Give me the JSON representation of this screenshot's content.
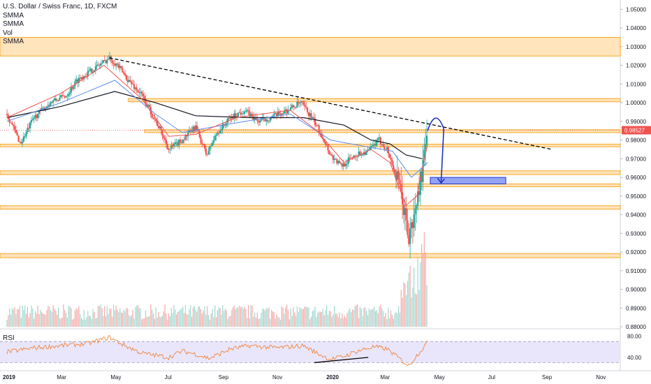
{
  "legend": {
    "symbol": "U.S. Dollar / Swiss Franc, 1D, FXCM",
    "indicators": [
      "SMMA",
      "SMMA",
      "Vol",
      "SMMA"
    ]
  },
  "rsi_label": "RSI",
  "colors": {
    "bull": "#26a69a",
    "bear": "#ef5350",
    "zone_fill": "#ffd9a0",
    "zone_edge": "#f5a623",
    "trendline": "#000000",
    "arrow": "#1f32c8",
    "target_box": "#6f86f0",
    "price_badge": "#ef5350",
    "rsi_line": "#f0833a",
    "rsi_band": "#e9e6fb",
    "smma_fast": "#ef5350",
    "smma_mid": "#5b8def",
    "smma_slow": "#131722",
    "volume": "#c4c4c4"
  },
  "chart_data": {
    "type": "candlestick",
    "title": "U.S. Dollar / Swiss Franc, 1D, FXCM",
    "price_axis": {
      "ylim": [
        0.88,
        1.055
      ],
      "ticks": [
        1.05,
        1.04,
        1.03,
        1.02,
        1.01,
        1.0,
        0.99,
        0.98,
        0.97,
        0.96,
        0.95,
        0.94,
        0.93,
        0.92,
        0.91,
        0.9,
        0.89,
        0.88
      ],
      "tick_labels": [
        "1.05000",
        "1.04000",
        "1.03000",
        "1.02000",
        "1.01000",
        "1.00000",
        "0.99000",
        "0.98000",
        "0.97000",
        "0.96000",
        "0.95000",
        "0.94000",
        "0.93000",
        "0.92000",
        "0.91000",
        "0.90000",
        "0.89000",
        "0.88000"
      ]
    },
    "current_price": 0.98527,
    "current_price_label": "0.98527",
    "x_labels": [
      "2019",
      "Mar",
      "May",
      "Jul",
      "Sep",
      "Nov",
      "2020",
      "Mar",
      "May",
      "Jul",
      "Sep",
      "Nov"
    ],
    "x_label_months": [
      0,
      2,
      4,
      6,
      8,
      10,
      12,
      14,
      16,
      18,
      20,
      22
    ],
    "price_path": [
      [
        0,
        0.994
      ],
      [
        0.5,
        0.978
      ],
      [
        1,
        0.992
      ],
      [
        1.6,
        1.0
      ],
      [
        2.2,
        1.004
      ],
      [
        2.6,
        1.012
      ],
      [
        3.0,
        1.016
      ],
      [
        3.5,
        1.021
      ],
      [
        3.8,
        1.024
      ],
      [
        4.1,
        1.02
      ],
      [
        4.5,
        1.012
      ],
      [
        5.0,
        1.004
      ],
      [
        5.3,
        0.996
      ],
      [
        5.7,
        0.985
      ],
      [
        6.0,
        0.975
      ],
      [
        6.5,
        0.98
      ],
      [
        7.0,
        0.987
      ],
      [
        7.4,
        0.972
      ],
      [
        7.8,
        0.984
      ],
      [
        8.3,
        0.992
      ],
      [
        8.8,
        0.996
      ],
      [
        9.3,
        0.99
      ],
      [
        9.8,
        0.992
      ],
      [
        10.4,
        0.996
      ],
      [
        10.9,
        1.0
      ],
      [
        11.3,
        0.992
      ],
      [
        11.7,
        0.982
      ],
      [
        12.0,
        0.972
      ],
      [
        12.4,
        0.966
      ],
      [
        12.9,
        0.972
      ],
      [
        13.4,
        0.974
      ],
      [
        13.8,
        0.98
      ],
      [
        14.1,
        0.975
      ],
      [
        14.4,
        0.962
      ],
      [
        14.7,
        0.945
      ],
      [
        14.9,
        0.927
      ],
      [
        15.1,
        0.938
      ],
      [
        15.3,
        0.956
      ],
      [
        15.5,
        0.972
      ],
      [
        15.6,
        0.985
      ]
    ],
    "smma_fast": [
      [
        0,
        0.992
      ],
      [
        2,
        1.005
      ],
      [
        3.6,
        1.02
      ],
      [
        5,
        1.002
      ],
      [
        6,
        0.982
      ],
      [
        7,
        0.983
      ],
      [
        8.5,
        0.992
      ],
      [
        10.5,
        0.996
      ],
      [
        11.5,
        0.985
      ],
      [
        12.5,
        0.968
      ],
      [
        13.5,
        0.975
      ],
      [
        14.2,
        0.968
      ],
      [
        14.8,
        0.945
      ],
      [
        15.2,
        0.95
      ],
      [
        15.6,
        0.978
      ]
    ],
    "smma_mid": [
      [
        0,
        0.99
      ],
      [
        2,
        1.0
      ],
      [
        4,
        1.012
      ],
      [
        5.5,
        0.994
      ],
      [
        6.5,
        0.984
      ],
      [
        8,
        0.988
      ],
      [
        10.5,
        0.994
      ],
      [
        12,
        0.98
      ],
      [
        13.5,
        0.976
      ],
      [
        14.3,
        0.974
      ],
      [
        15,
        0.96
      ],
      [
        15.6,
        0.968
      ]
    ],
    "smma_slow": [
      [
        0,
        0.992
      ],
      [
        2,
        0.998
      ],
      [
        4,
        1.006
      ],
      [
        5.5,
        1.0
      ],
      [
        7,
        0.993
      ],
      [
        9,
        0.992
      ],
      [
        11,
        0.992
      ],
      [
        12.5,
        0.988
      ],
      [
        13.5,
        0.98
      ],
      [
        14.2,
        0.978
      ],
      [
        14.8,
        0.972
      ],
      [
        15.4,
        0.97
      ]
    ],
    "zones": [
      {
        "low": 1.025,
        "high": 1.035
      },
      {
        "low": 1.0005,
        "high": 1.0022
      },
      {
        "low": 0.984,
        "high": 0.9855
      },
      {
        "low": 0.9764,
        "high": 0.9778
      },
      {
        "low": 0.9615,
        "high": 0.9635
      },
      {
        "low": 0.955,
        "high": 0.9565
      },
      {
        "low": 0.943,
        "high": 0.9448
      },
      {
        "low": 0.917,
        "high": 0.9192
      }
    ],
    "trendline": {
      "from": [
        3.8,
        1.024
      ],
      "to": [
        20.2,
        0.975
      ]
    },
    "target_box": {
      "x_from": 15.7,
      "x_to": 18.5,
      "low": 0.9565,
      "high": 0.96
    },
    "forecast_arrow": [
      [
        15.6,
        0.985
      ],
      [
        15.9,
        0.992
      ],
      [
        16.2,
        0.986
      ],
      [
        16.1,
        0.957
      ]
    ],
    "volume": {
      "max_label_ref": 1,
      "spike_start_month": 14.6,
      "spike_end_month": 15.6
    },
    "rsi": {
      "ticks": [
        80.0,
        40.0
      ],
      "tick_labels": [
        "80.00",
        "40.00"
      ],
      "ylim": [
        20,
        90
      ],
      "band": [
        30,
        70
      ],
      "path": [
        [
          0,
          50
        ],
        [
          1,
          58
        ],
        [
          2,
          62
        ],
        [
          3,
          66
        ],
        [
          3.8,
          78
        ],
        [
          4.3,
          64
        ],
        [
          5,
          48
        ],
        [
          6,
          40
        ],
        [
          6.5,
          52
        ],
        [
          7,
          46
        ],
        [
          7.5,
          38
        ],
        [
          8.3,
          56
        ],
        [
          9,
          62
        ],
        [
          10,
          58
        ],
        [
          11,
          62
        ],
        [
          11.5,
          48
        ],
        [
          12,
          36
        ],
        [
          12.5,
          42
        ],
        [
          13,
          52
        ],
        [
          13.6,
          60
        ],
        [
          14.1,
          56
        ],
        [
          14.6,
          36
        ],
        [
          14.9,
          24
        ],
        [
          15.2,
          44
        ],
        [
          15.6,
          68
        ]
      ],
      "divergence_line": [
        [
          11.4,
          30
        ],
        [
          13.4,
          40
        ]
      ]
    }
  }
}
